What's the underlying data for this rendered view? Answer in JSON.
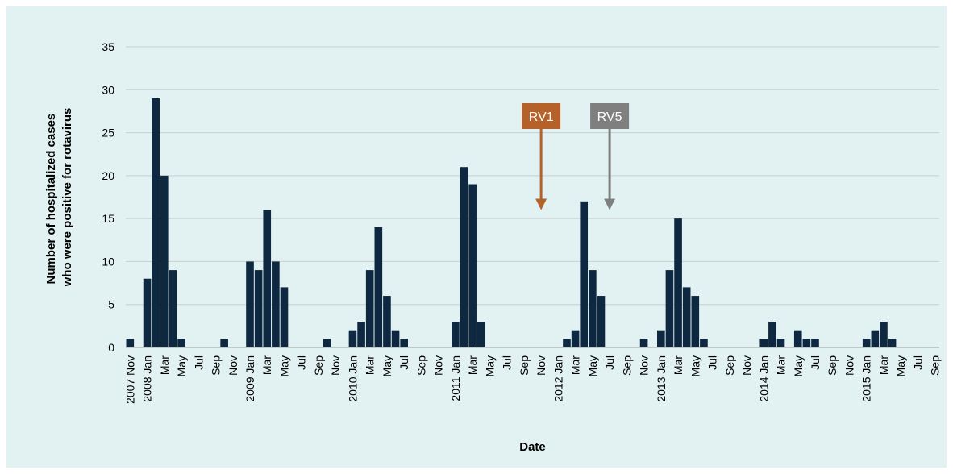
{
  "colors": {
    "background": "#e2f1f1",
    "bar": "#0e2841",
    "grid": "#c8d0d0",
    "rv1": "#b4622a",
    "rv5": "#7f7f7f"
  },
  "chart_data": {
    "type": "bar",
    "ylabel_line1": "Number of hospitalized cases",
    "ylabel_line2": "who were positive for rotavirus",
    "xlabel": "Date",
    "ylim": [
      0,
      35
    ],
    "yticks": [
      0,
      5,
      10,
      15,
      20,
      25,
      30,
      35
    ],
    "grid": true,
    "categories": [
      "2007-11",
      "2007-12",
      "2008-01",
      "2008-02",
      "2008-03",
      "2008-04",
      "2008-05",
      "2008-06",
      "2008-07",
      "2008-08",
      "2008-09",
      "2008-10",
      "2008-11",
      "2008-12",
      "2009-01",
      "2009-02",
      "2009-03",
      "2009-04",
      "2009-05",
      "2009-06",
      "2009-07",
      "2009-08",
      "2009-09",
      "2009-10",
      "2009-11",
      "2009-12",
      "2010-01",
      "2010-02",
      "2010-03",
      "2010-04",
      "2010-05",
      "2010-06",
      "2010-07",
      "2010-08",
      "2010-09",
      "2010-10",
      "2010-11",
      "2010-12",
      "2011-01",
      "2011-02",
      "2011-03",
      "2011-04",
      "2011-05",
      "2011-06",
      "2011-07",
      "2011-08",
      "2011-09",
      "2011-10",
      "2011-11",
      "2011-12",
      "2012-01",
      "2012-02",
      "2012-03",
      "2012-04",
      "2012-05",
      "2012-06",
      "2012-07",
      "2012-08",
      "2012-09",
      "2012-10",
      "2012-11",
      "2012-12",
      "2013-01",
      "2013-02",
      "2013-03",
      "2013-04",
      "2013-05",
      "2013-06",
      "2013-07",
      "2013-08",
      "2013-09",
      "2013-10",
      "2013-11",
      "2013-12",
      "2014-01",
      "2014-02",
      "2014-03",
      "2014-04",
      "2014-05",
      "2014-06",
      "2014-07",
      "2014-08",
      "2014-09",
      "2014-10",
      "2014-11",
      "2014-12",
      "2015-01",
      "2015-02",
      "2015-03",
      "2015-04",
      "2015-05",
      "2015-06",
      "2015-07",
      "2015-08",
      "2015-09"
    ],
    "values": [
      1,
      0,
      8,
      29,
      20,
      9,
      1,
      0,
      0,
      0,
      0,
      1,
      0,
      0,
      10,
      9,
      16,
      10,
      7,
      0,
      0,
      0,
      0,
      1,
      0,
      0,
      2,
      3,
      9,
      14,
      6,
      2,
      1,
      0,
      0,
      0,
      0,
      0,
      3,
      21,
      19,
      3,
      0,
      0,
      0,
      0,
      0,
      0,
      0,
      0,
      0,
      1,
      2,
      17,
      9,
      6,
      0,
      0,
      0,
      0,
      1,
      0,
      2,
      9,
      15,
      7,
      6,
      1,
      0,
      0,
      0,
      0,
      0,
      0,
      1,
      3,
      1,
      0,
      2,
      1,
      1,
      0,
      0,
      0,
      0,
      0,
      1,
      2,
      3,
      1,
      0,
      0,
      0,
      0,
      0
    ],
    "tick_labels": [
      "2007 Nov",
      "",
      "2008 Jan",
      "",
      "Mar",
      "",
      "May",
      "",
      "Jul",
      "",
      "Sep",
      "",
      "Nov",
      "",
      "2009 Jan",
      "",
      "Mar",
      "",
      "May",
      "",
      "Jul",
      "",
      "Sep",
      "",
      "Nov",
      "",
      "2010 Jan",
      "",
      "Mar",
      "",
      "May",
      "",
      "Jul",
      "",
      "Sep",
      "",
      "Nov",
      "",
      "2011 Jan",
      "",
      "Mar",
      "",
      "May",
      "",
      "Jul",
      "",
      "Sep",
      "",
      "Nov",
      "",
      "2012 Jan",
      "",
      "Mar",
      "",
      "May",
      "",
      "Jul",
      "",
      "Sep",
      "",
      "Nov",
      "",
      "2013 Jan",
      "",
      "Mar",
      "",
      "May",
      "",
      "Jul",
      "",
      "Sep",
      "",
      "Nov",
      "",
      "2014 Jan",
      "",
      "Mar",
      "",
      "May",
      "",
      "Jul",
      "",
      "Sep",
      "",
      "Nov",
      "",
      "2015 Jan",
      "",
      "Mar",
      "",
      "May",
      "",
      "Jul",
      "",
      "Sep"
    ],
    "annotations": [
      {
        "label": "RV1",
        "category": "2011-11",
        "arrow_to_value": 17.5,
        "color_key": "rv1"
      },
      {
        "label": "RV5",
        "category": "2012-07",
        "arrow_to_value": 17.5,
        "color_key": "rv5"
      }
    ]
  }
}
